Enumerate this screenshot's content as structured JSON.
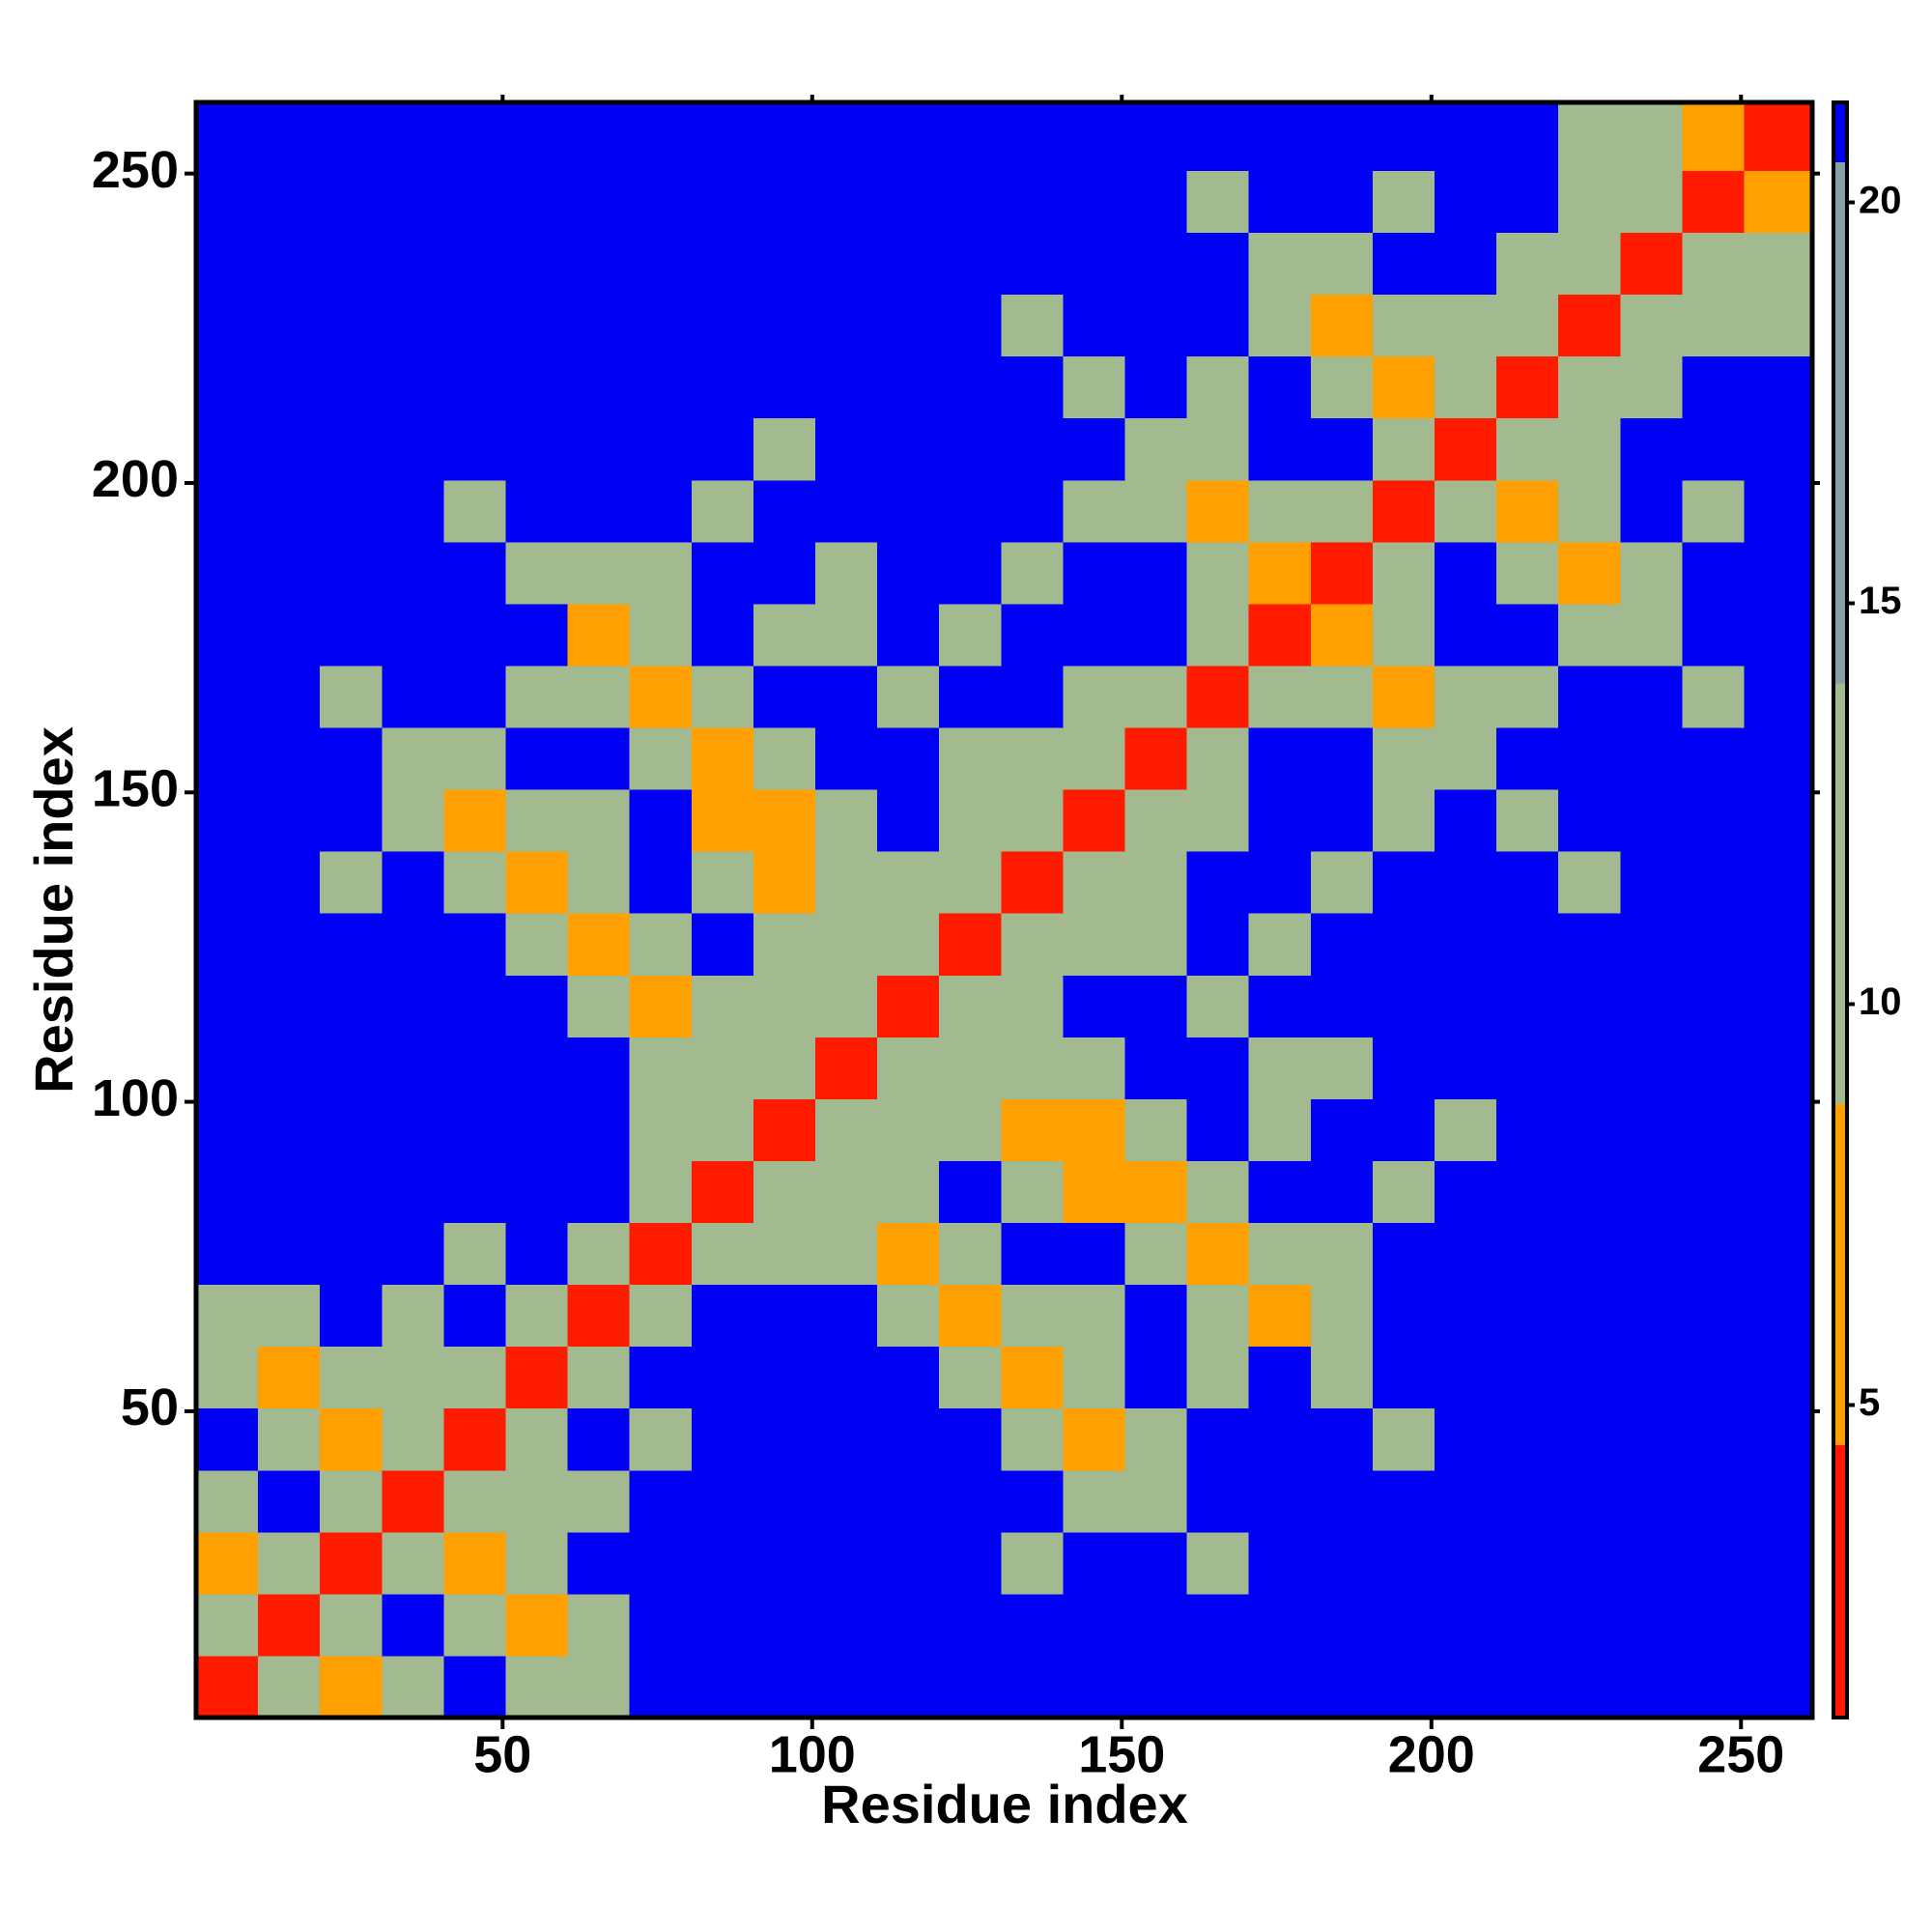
{
  "chart_data": {
    "type": "heatmap",
    "xlabel": "Residue index",
    "ylabel": "Residue index",
    "xlim": [
      0.5,
      261.5
    ],
    "ylim": [
      0.5,
      261.5
    ],
    "xticks": [
      50,
      100,
      150,
      200,
      250
    ],
    "yticks": [
      50,
      100,
      150,
      200,
      250
    ],
    "bins": [
      0.5,
      10.5,
      20.5,
      30.5,
      40.5,
      50.5,
      60.5,
      70.5,
      80.5,
      90.5,
      100.5,
      110.5,
      120.5,
      130.5,
      140.5,
      150.5,
      160.5,
      170.5,
      180.5,
      190.5,
      200.5,
      210.5,
      220.5,
      230.5,
      240.5,
      250.5,
      261.5
    ],
    "clim": [
      1.1,
      21.25
    ],
    "cticks": [
      5,
      10,
      15,
      20
    ],
    "colorscale": [
      {
        "upto": 4.5,
        "color": "#ff1a00"
      },
      {
        "upto": 8.75,
        "color": "#ffa000"
      },
      {
        "upto": 14,
        "color": "#a3b98f"
      },
      {
        "upto": 20.5,
        "color": "#86a0a6"
      },
      {
        "color": "#0000f5"
      }
    ],
    "z": [
      [
        3.8,
        10,
        6.5,
        13,
        21,
        13,
        13,
        21,
        21,
        21,
        21,
        21,
        21,
        21,
        21,
        21,
        21,
        21,
        21,
        21,
        21,
        21,
        21,
        21,
        21,
        21
      ],
      [
        10,
        3.8,
        10,
        21,
        13,
        6.5,
        13,
        21,
        21,
        21,
        21,
        21,
        21,
        21,
        21,
        21,
        21,
        21,
        21,
        21,
        21,
        21,
        21,
        21,
        21,
        21
      ],
      [
        6.5,
        10,
        3.8,
        10,
        6.5,
        13,
        21,
        21,
        21,
        21,
        21,
        21,
        21,
        13,
        21,
        21,
        13,
        21,
        21,
        21,
        21,
        21,
        21,
        21,
        21,
        21
      ],
      [
        13,
        21,
        10,
        3.8,
        10,
        13,
        13,
        21,
        21,
        21,
        21,
        21,
        21,
        21,
        13,
        13,
        21,
        21,
        21,
        21,
        21,
        21,
        21,
        21,
        21,
        21
      ],
      [
        21,
        13,
        6.5,
        10,
        3.8,
        10,
        21,
        13,
        21,
        21,
        21,
        21,
        21,
        13,
        6.5,
        13,
        21,
        21,
        21,
        13,
        21,
        21,
        21,
        21,
        21,
        21
      ],
      [
        13,
        6.5,
        13,
        13,
        10,
        3.8,
        10,
        21,
        21,
        21,
        21,
        21,
        13,
        6.5,
        13,
        21,
        13,
        21,
        13,
        21,
        21,
        21,
        21,
        21,
        21,
        21
      ],
      [
        13,
        13,
        21,
        13,
        21,
        10,
        3.8,
        10,
        21,
        21,
        21,
        13,
        6.5,
        13,
        13,
        21,
        13,
        6.5,
        13,
        21,
        21,
        21,
        21,
        21,
        21,
        21
      ],
      [
        21,
        21,
        21,
        21,
        13,
        21,
        10,
        3.8,
        10,
        13,
        13,
        6.5,
        13,
        21,
        21,
        13,
        6.5,
        13,
        13,
        21,
        21,
        21,
        21,
        21,
        21,
        21
      ],
      [
        21,
        21,
        21,
        21,
        21,
        21,
        21,
        10,
        3.8,
        10,
        13,
        13,
        21,
        13,
        6.5,
        6.5,
        13,
        21,
        21,
        13,
        21,
        21,
        21,
        21,
        21,
        21
      ],
      [
        21,
        21,
        21,
        21,
        21,
        21,
        21,
        13,
        10,
        3.8,
        10,
        13,
        13,
        6.5,
        6.5,
        13,
        21,
        13,
        21,
        21,
        13,
        21,
        21,
        21,
        21,
        21
      ],
      [
        21,
        21,
        21,
        21,
        21,
        21,
        21,
        13,
        13,
        10,
        3.8,
        10,
        13,
        13,
        13,
        21,
        21,
        13,
        13,
        21,
        21,
        21,
        21,
        21,
        21,
        21
      ],
      [
        21,
        21,
        21,
        21,
        21,
        21,
        13,
        6.5,
        13,
        13,
        10,
        3.8,
        10,
        13,
        21,
        21,
        13,
        21,
        21,
        21,
        21,
        21,
        21,
        21,
        21,
        21
      ],
      [
        21,
        21,
        21,
        21,
        21,
        13,
        6.5,
        13,
        21,
        13,
        13,
        10,
        3.8,
        10,
        13,
        13,
        21,
        13,
        21,
        21,
        21,
        21,
        21,
        21,
        21,
        21
      ],
      [
        21,
        21,
        13,
        21,
        13,
        6.5,
        13,
        21,
        13,
        6.5,
        13,
        13,
        10,
        3.8,
        10,
        13,
        21,
        21,
        13,
        21,
        21,
        21,
        13,
        21,
        21,
        21
      ],
      [
        21,
        21,
        21,
        13,
        6.5,
        13,
        13,
        21,
        6.5,
        6.5,
        13,
        21,
        13,
        10,
        3.8,
        10,
        13,
        21,
        21,
        13,
        21,
        13,
        21,
        21,
        21,
        21
      ],
      [
        21,
        21,
        21,
        13,
        13,
        21,
        21,
        13,
        6.5,
        13,
        21,
        21,
        13,
        13,
        10,
        3.8,
        10,
        21,
        21,
        13,
        13,
        21,
        21,
        21,
        21,
        21
      ],
      [
        21,
        21,
        13,
        21,
        21,
        13,
        13,
        6.5,
        13,
        21,
        21,
        13,
        21,
        21,
        13,
        10,
        3.8,
        10,
        13,
        6.5,
        13,
        13,
        21,
        21,
        13,
        21
      ],
      [
        21,
        21,
        21,
        21,
        21,
        21,
        6.5,
        13,
        21,
        13,
        13,
        21,
        13,
        21,
        21,
        21,
        10,
        3.8,
        6.5,
        13,
        21,
        21,
        13,
        13,
        21,
        21
      ],
      [
        21,
        21,
        21,
        21,
        21,
        13,
        13,
        13,
        21,
        21,
        13,
        21,
        21,
        13,
        21,
        21,
        13,
        6.5,
        3.8,
        10,
        21,
        13,
        6.5,
        13,
        21,
        21
      ],
      [
        21,
        21,
        21,
        21,
        13,
        21,
        21,
        21,
        13,
        21,
        21,
        21,
        21,
        21,
        13,
        13,
        6.5,
        13,
        10,
        3.8,
        10,
        6.5,
        13,
        21,
        13,
        21
      ],
      [
        21,
        21,
        21,
        21,
        21,
        21,
        21,
        21,
        21,
        13,
        21,
        21,
        21,
        21,
        21,
        13,
        13,
        21,
        21,
        10,
        3.8,
        10,
        13,
        21,
        21,
        21
      ],
      [
        21,
        21,
        21,
        21,
        21,
        21,
        21,
        21,
        21,
        21,
        21,
        21,
        21,
        21,
        13,
        21,
        13,
        21,
        13,
        6.5,
        10,
        3.8,
        10,
        13,
        21,
        21
      ],
      [
        21,
        21,
        21,
        21,
        21,
        21,
        21,
        21,
        21,
        21,
        21,
        21,
        21,
        13,
        21,
        21,
        21,
        13,
        6.5,
        13,
        13,
        10,
        3.8,
        10,
        13,
        13
      ],
      [
        21,
        21,
        21,
        21,
        21,
        21,
        21,
        21,
        21,
        21,
        21,
        21,
        21,
        21,
        21,
        21,
        21,
        13,
        13,
        21,
        21,
        13,
        10,
        3.8,
        10,
        13
      ],
      [
        21,
        21,
        21,
        21,
        21,
        21,
        21,
        21,
        21,
        21,
        21,
        21,
        21,
        21,
        21,
        21,
        13,
        21,
        21,
        13,
        21,
        21,
        13,
        10,
        3.8,
        6.5
      ],
      [
        21,
        21,
        21,
        21,
        21,
        21,
        21,
        21,
        21,
        21,
        21,
        21,
        21,
        21,
        21,
        21,
        21,
        21,
        21,
        21,
        21,
        21,
        13,
        13,
        6.5,
        3.8
      ]
    ]
  }
}
